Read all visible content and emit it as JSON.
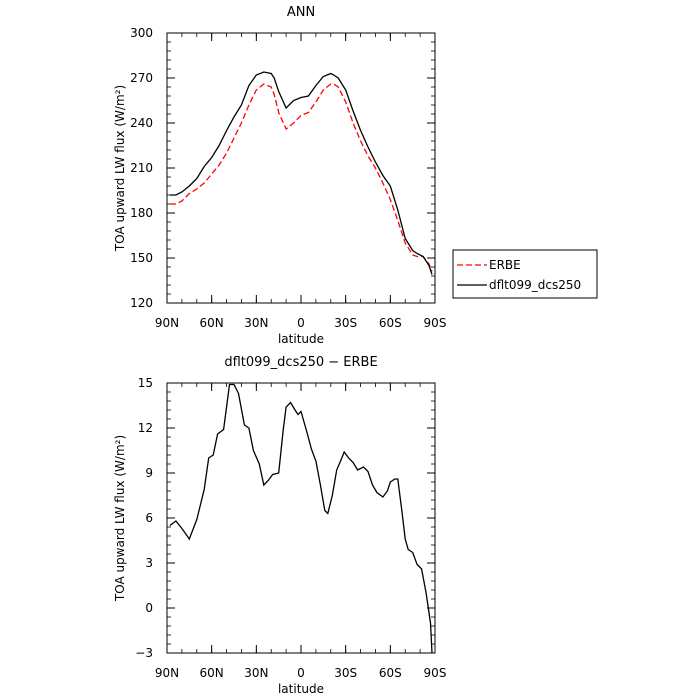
{
  "chart_data": [
    {
      "type": "line",
      "title": "ANN",
      "xlabel": "latitude",
      "ylabel": "TOA upward LW flux (W/m²)",
      "xlim": [
        90,
        -90
      ],
      "ylim": [
        120,
        300
      ],
      "xticks": [
        90,
        60,
        30,
        0,
        -30,
        -60,
        -90
      ],
      "xtick_labels": [
        "90N",
        "60N",
        "30N",
        "0",
        "30S",
        "60S",
        "90S"
      ],
      "yticks": [
        120,
        150,
        180,
        210,
        240,
        270,
        300
      ],
      "ytick_labels": [
        "120",
        "150",
        "180",
        "210",
        "240",
        "270",
        "300"
      ],
      "legend_position": "right",
      "series": [
        {
          "name": "ERBE",
          "color": "#ff0000",
          "style": "dashed",
          "x": [
            88,
            84,
            80,
            75,
            70,
            65,
            60,
            55,
            50,
            45,
            40,
            35,
            30,
            25,
            20,
            18,
            15,
            10,
            5,
            0,
            -5,
            -10,
            -15,
            -20,
            -22,
            -25,
            -30,
            -35,
            -40,
            -45,
            -50,
            -55,
            -60,
            -65,
            -70,
            -75,
            -78,
            -82,
            -86,
            -88
          ],
          "y": [
            186,
            186,
            188,
            193,
            196,
            200,
            206,
            212,
            220,
            230,
            240,
            252,
            262,
            266,
            264,
            259,
            247,
            236,
            240,
            245,
            247,
            254,
            262,
            266,
            266,
            264,
            254,
            240,
            228,
            218,
            210,
            200,
            189,
            175,
            160,
            152,
            151,
            151,
            146,
            141
          ]
        },
        {
          "name": "dflt099_dcs250",
          "color": "#000000",
          "style": "solid",
          "x": [
            88,
            84,
            80,
            75,
            70,
            65,
            60,
            55,
            50,
            45,
            40,
            35,
            30,
            25,
            20,
            18,
            15,
            10,
            5,
            0,
            -5,
            -10,
            -15,
            -20,
            -22,
            -25,
            -30,
            -35,
            -40,
            -45,
            -50,
            -55,
            -60,
            -65,
            -70,
            -75,
            -78,
            -82,
            -86,
            -88
          ],
          "y": [
            192,
            192,
            194,
            198,
            203,
            211,
            217,
            225,
            235,
            244,
            252,
            265,
            272,
            274,
            273,
            270,
            261,
            250,
            255,
            257,
            258,
            265,
            271,
            273,
            272,
            270,
            262,
            248,
            235,
            224,
            214,
            205,
            198,
            182,
            163,
            155,
            153,
            151,
            145,
            139
          ]
        }
      ]
    },
    {
      "type": "line",
      "title": "dflt099_dcs250 − ERBE",
      "xlabel": "latitude",
      "ylabel": "TOA upward LW flux (W/m²)",
      "xlim": [
        90,
        -90
      ],
      "ylim": [
        -3,
        15
      ],
      "xticks": [
        90,
        60,
        30,
        0,
        -30,
        -60,
        -90
      ],
      "xtick_labels": [
        "90N",
        "60N",
        "30N",
        "0",
        "30S",
        "60S",
        "90S"
      ],
      "yticks": [
        -3,
        0,
        3,
        6,
        9,
        12,
        15
      ],
      "ytick_labels": [
        "−3",
        "0",
        "3",
        "6",
        "9",
        "12",
        "15"
      ],
      "series": [
        {
          "color": "#000000",
          "style": "solid",
          "x": [
            88,
            84,
            80,
            75,
            70,
            65,
            62,
            59,
            56,
            52,
            48,
            45,
            42,
            38,
            35,
            32,
            28,
            25,
            22,
            19,
            15,
            12,
            10,
            7,
            4,
            2,
            0,
            -4,
            -7,
            -10,
            -13,
            -16,
            -18,
            -21,
            -24,
            -27,
            -29,
            -32,
            -35,
            -38,
            -42,
            -45,
            -48,
            -51,
            -55,
            -58,
            -60,
            -63,
            -65,
            -68,
            -70,
            -72,
            -75,
            -78,
            -81,
            -84,
            -87,
            -88
          ],
          "y": [
            5.5,
            5.8,
            5.3,
            4.6,
            5.9,
            7.9,
            10.0,
            10.2,
            11.6,
            11.9,
            14.9,
            14.9,
            14.3,
            12.2,
            12.0,
            10.5,
            9.6,
            8.2,
            8.5,
            8.9,
            9.0,
            11.8,
            13.4,
            13.7,
            13.2,
            12.9,
            13.1,
            11.7,
            10.6,
            9.8,
            8.2,
            6.5,
            6.3,
            7.5,
            9.2,
            9.9,
            10.4,
            10.0,
            9.7,
            9.2,
            9.4,
            9.1,
            8.2,
            7.7,
            7.4,
            7.8,
            8.4,
            8.6,
            8.6,
            6.3,
            4.6,
            3.9,
            3.7,
            2.9,
            2.6,
            1.0,
            -1.0,
            -3.0
          ]
        }
      ]
    }
  ]
}
